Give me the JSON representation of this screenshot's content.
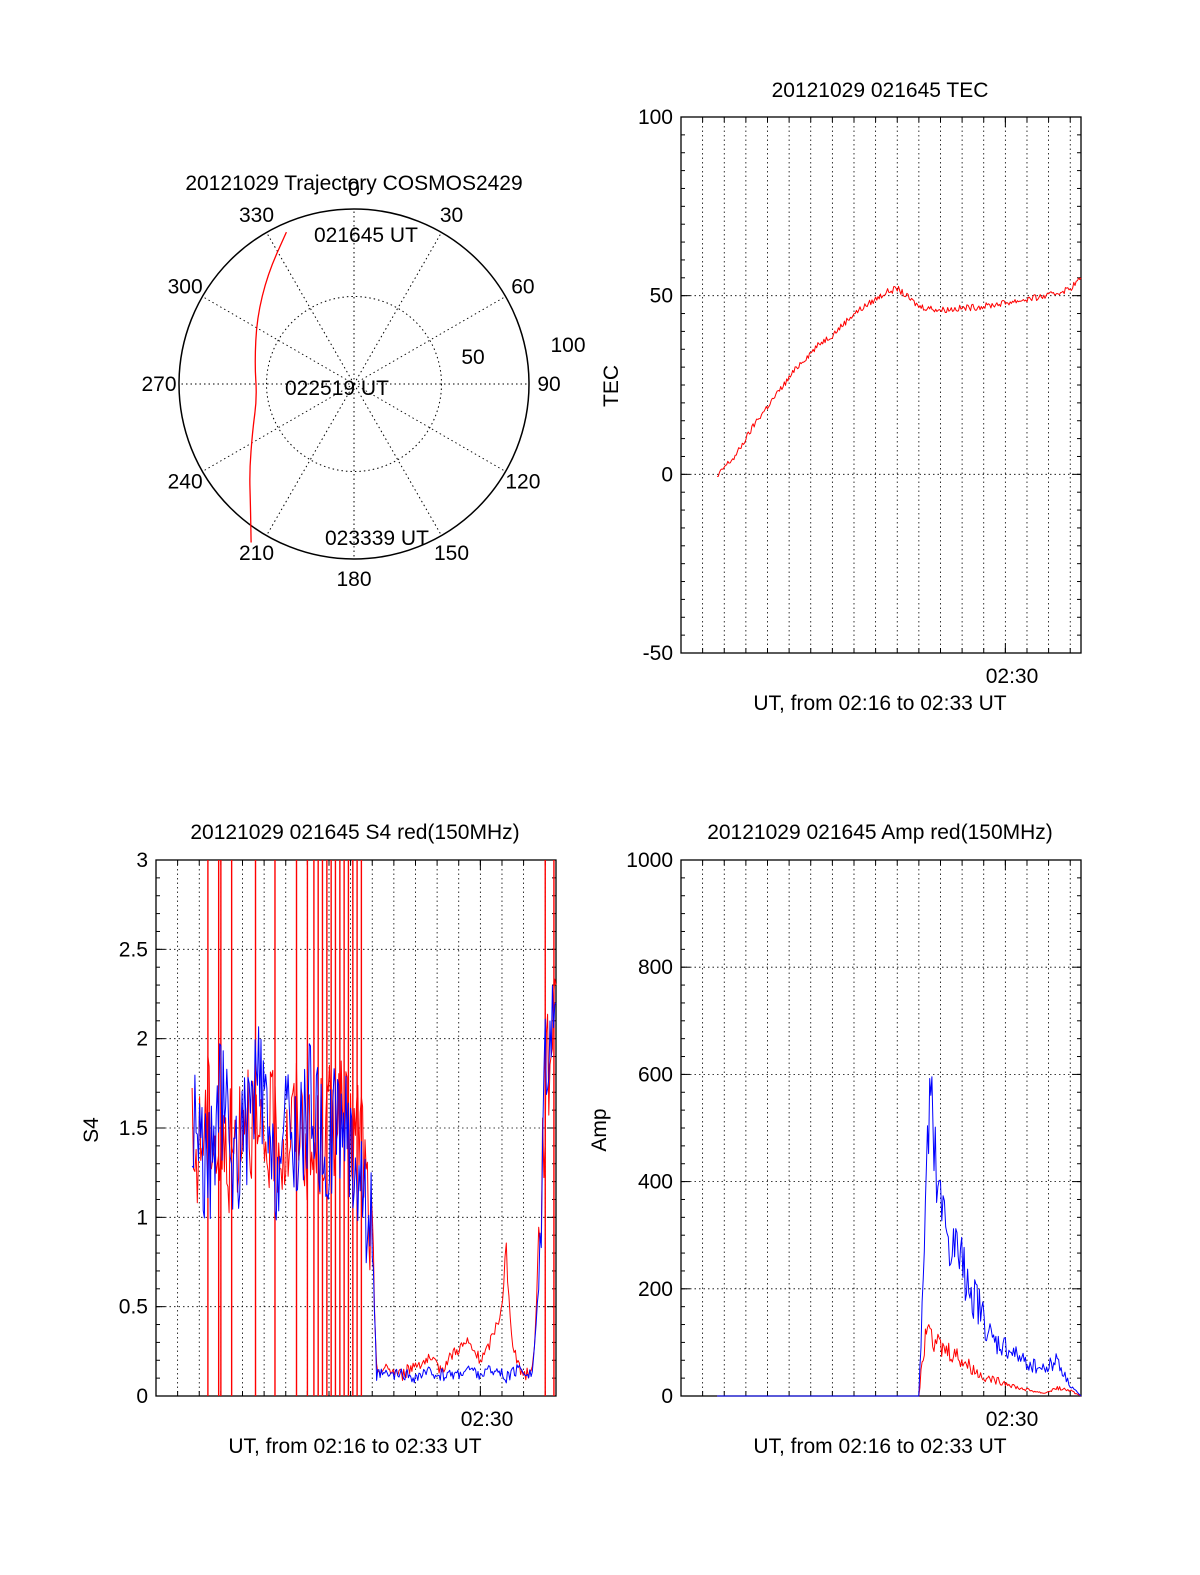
{
  "colors": {
    "red": "#ff0000",
    "blue": "#0000ff",
    "axis": "#000000",
    "grid": "#000000"
  },
  "chart_data": [
    {
      "type": "polar",
      "title": "20121029 Trajectory COSMOS2429",
      "angle_labels": [
        "0",
        "30",
        "60",
        "90",
        "120",
        "150",
        "180",
        "210",
        "240",
        "270",
        "300",
        "330"
      ],
      "ring_labels": [
        "50",
        "100"
      ],
      "annotations": [
        "021645 UT",
        "022519 UT",
        "023339 UT"
      ],
      "series": [
        {
          "color": "red",
          "points": [
            {
              "azimuth": 336,
              "zenith": 95
            },
            {
              "azimuth": 322,
              "zenith": 80
            },
            {
              "azimuth": 304,
              "zenith": 67
            },
            {
              "azimuth": 282,
              "zenith": 58
            },
            {
              "azimuth": 262,
              "zenith": 56
            },
            {
              "azimuth": 245,
              "zenith": 64
            },
            {
              "azimuth": 230,
              "zenith": 78
            },
            {
              "azimuth": 220,
              "zenith": 92
            },
            {
              "azimuth": 213,
              "zenith": 108
            }
          ]
        }
      ]
    },
    {
      "type": "line",
      "title": "20121029 021645 TEC",
      "ylabel": "TEC",
      "xlabel": "UT, from 02:16 to 02:33 UT",
      "xlim": [
        2.25,
        2.5583
      ],
      "ylim": [
        -50,
        100
      ],
      "yticks": [
        "100",
        "50",
        "0",
        "-50"
      ],
      "xtick_label": "02:30",
      "series": [
        {
          "color": "red",
          "x": [
            2.2778,
            2.2833,
            2.2917,
            2.3,
            2.3083,
            2.3167,
            2.325,
            2.3333,
            2.3417,
            2.35,
            2.3583,
            2.3667,
            2.375,
            2.3833,
            2.3917,
            2.4,
            2.4083,
            2.4167,
            2.4333,
            2.45,
            2.4667,
            2.4833,
            2.5,
            2.5167,
            2.5333,
            2.55,
            2.5583
          ],
          "y": [
            -1,
            2,
            5,
            10,
            15,
            19,
            23,
            27,
            31,
            34,
            37,
            39,
            42,
            45,
            47,
            49,
            51,
            52,
            47,
            46,
            46.5,
            47,
            48,
            49,
            50,
            52,
            55
          ]
        }
      ]
    },
    {
      "type": "line",
      "title": "20121029 021645 S4 red(150MHz)",
      "ylabel": "S4",
      "xlabel": "UT, from 02:16 to 02:33 UT",
      "xlim": [
        2.25,
        2.5583
      ],
      "ylim": [
        0,
        3
      ],
      "yticks": [
        "3",
        "2.5",
        "2",
        "1.5",
        "1",
        "0.5",
        "0"
      ],
      "xtick_label": "02:30",
      "series": [
        {
          "name": "red",
          "color": "red",
          "x": [
            2.2778,
            2.28,
            2.29,
            2.3,
            2.31,
            2.32,
            2.33,
            2.34,
            2.35,
            2.36,
            2.37,
            2.38,
            2.39,
            2.4,
            2.4083,
            2.4167,
            2.42,
            2.43,
            2.44,
            2.45,
            2.46,
            2.47,
            2.48,
            2.49,
            2.5,
            2.505,
            2.51,
            2.515,
            2.52,
            2.525,
            2.53,
            2.535,
            2.54,
            2.5417,
            2.545,
            2.55,
            2.5583
          ],
          "y": [
            1.4,
            1.3,
            1.6,
            1.3,
            1.4,
            1.7,
            1.3,
            1.5,
            1.4,
            1.6,
            1.3,
            1.5,
            1.6,
            1.4,
            1.5,
            0.8,
            0.15,
            0.15,
            0.12,
            0.18,
            0.2,
            0.15,
            0.25,
            0.3,
            0.2,
            0.25,
            0.35,
            0.45,
            0.7,
            0.3,
            0.15,
            0.12,
            0.15,
            0.3,
            0.8,
            1.7,
            2.3
          ],
          "spikes_x": [
            2.29,
            2.2983,
            2.3,
            2.3083,
            2.3267,
            2.3417,
            2.3583,
            2.3667,
            2.3717,
            2.375,
            2.3783,
            2.3817,
            2.385,
            2.3883,
            2.3917,
            2.395,
            2.3983,
            2.4017,
            2.405,
            2.4083,
            2.55,
            2.5567
          ]
        },
        {
          "name": "blue",
          "color": "blue",
          "x": [
            2.2778,
            2.28,
            2.29,
            2.3,
            2.31,
            2.32,
            2.33,
            2.34,
            2.35,
            2.36,
            2.37,
            2.38,
            2.39,
            2.4,
            2.4083,
            2.4167,
            2.42,
            2.43,
            2.44,
            2.45,
            2.46,
            2.47,
            2.48,
            2.49,
            2.5,
            2.51,
            2.52,
            2.53,
            2.54,
            2.545,
            2.55,
            2.5583
          ],
          "y": [
            1.3,
            1.6,
            1.2,
            1.7,
            1.3,
            1.5,
            1.8,
            1.2,
            1.5,
            1.4,
            1.7,
            1.3,
            1.6,
            1.4,
            1.2,
            0.9,
            0.12,
            0.11,
            0.12,
            0.1,
            0.13,
            0.12,
            0.12,
            0.15,
            0.12,
            0.15,
            0.1,
            0.15,
            0.12,
            0.6,
            2.0,
            2.2
          ]
        }
      ]
    },
    {
      "type": "line",
      "title": "20121029 021645 Amp red(150MHz)",
      "ylabel": "Amp",
      "xlabel": "UT, from 02:16 to 02:33 UT",
      "xlim": [
        2.25,
        2.5583
      ],
      "ylim": [
        0,
        1000
      ],
      "yticks": [
        "1000",
        "800",
        "600",
        "400",
        "200",
        "0"
      ],
      "xtick_label": "02:30",
      "series": [
        {
          "name": "red",
          "color": "red",
          "x": [
            2.2778,
            2.3,
            2.35,
            2.4,
            2.4333,
            2.4375,
            2.44,
            2.445,
            2.45,
            2.46,
            2.47,
            2.48,
            2.49,
            2.5,
            2.51,
            2.52,
            2.53,
            2.54,
            2.55,
            2.5583
          ],
          "y": [
            0,
            0,
            0,
            0,
            0,
            100,
            170,
            110,
            90,
            80,
            60,
            40,
            30,
            25,
            15,
            10,
            5,
            15,
            10,
            0
          ]
        },
        {
          "name": "blue",
          "color": "blue",
          "x": [
            2.2778,
            2.3,
            2.35,
            2.4,
            2.4333,
            2.4375,
            2.4417,
            2.445,
            2.45,
            2.455,
            2.46,
            2.47,
            2.48,
            2.49,
            2.5,
            2.51,
            2.52,
            2.53,
            2.54,
            2.545,
            2.55,
            2.5583
          ],
          "y": [
            0,
            0,
            0,
            0,
            0,
            280,
            540,
            420,
            330,
            300,
            270,
            230,
            160,
            100,
            90,
            70,
            60,
            50,
            70,
            40,
            20,
            0
          ]
        }
      ]
    }
  ]
}
